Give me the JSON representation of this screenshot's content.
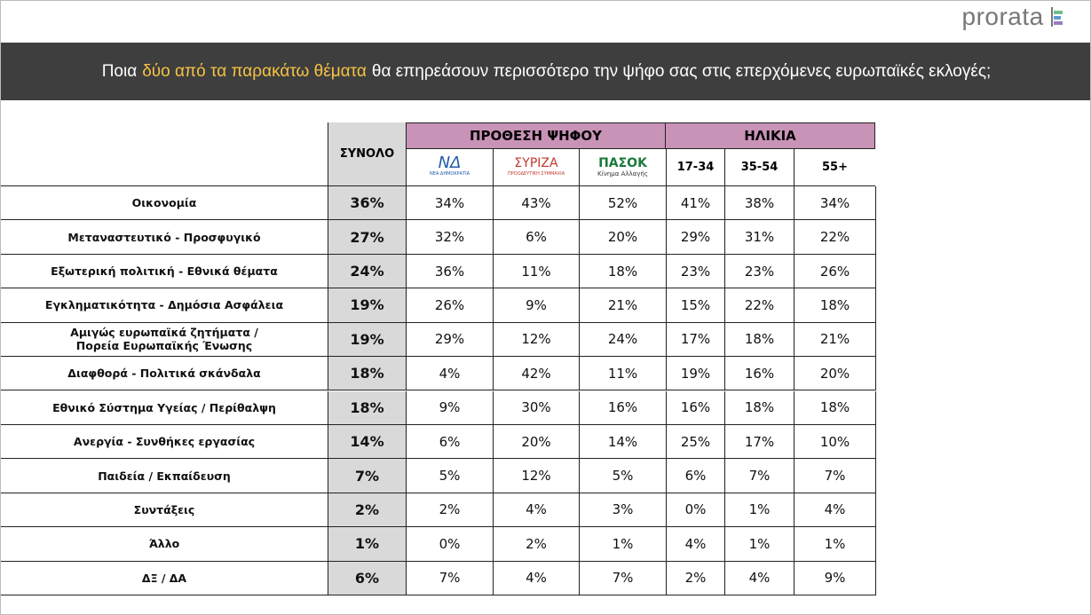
{
  "brand": "prorata",
  "header": {
    "title_prefix": "Ποια",
    "title_highlight": "δύο από τα παρακάτω θέματα",
    "title_suffix": "θα επηρεάσουν περισσότερο την ψήφο σας στις επερχόμενες ευρωπαϊκές εκλογές;"
  },
  "table": {
    "total_header": "ΣΥΝΟΛΟ",
    "groups": [
      "ΠΡΟΘΕΣΗ ΨΗΦΟΥ",
      "ΗΛΙΚΙΑ"
    ],
    "parties": [
      {
        "name": "ΝΔ",
        "subtitle": "ΝΕΑ ΔΗΜΟΚΡΑΤΙΑ"
      },
      {
        "name": "ΣΥΡΙΖΑ",
        "subtitle": "ΠΡΟΟΔΕΥΤΙΚΗ ΣΥΜΜΑΧΙΑ"
      },
      {
        "name": "ΠΑΣΟΚ",
        "subtitle": "Κίνημα Αλλαγής"
      }
    ],
    "ages": [
      "17-34",
      "35-54",
      "55+"
    ],
    "rows": [
      {
        "label": [
          "Οικονομία"
        ],
        "values": [
          "36%",
          "34%",
          "43%",
          "52%",
          "41%",
          "38%",
          "34%"
        ]
      },
      {
        "label": [
          "Μεταναστευτικό - Προσφυγικό"
        ],
        "values": [
          "27%",
          "32%",
          "6%",
          "20%",
          "29%",
          "31%",
          "22%"
        ]
      },
      {
        "label": [
          "Εξωτερική πολιτική - Εθνικά θέματα"
        ],
        "values": [
          "24%",
          "36%",
          "11%",
          "18%",
          "23%",
          "23%",
          "26%"
        ]
      },
      {
        "label": [
          "Εγκληματικότητα - Δημόσια Ασφάλεια"
        ],
        "values": [
          "19%",
          "26%",
          "9%",
          "21%",
          "15%",
          "22%",
          "18%"
        ]
      },
      {
        "label": [
          "Αμιγώς ευρωπαϊκά ζητήματα /",
          "Πορεία Ευρωπαϊκής Ένωσης"
        ],
        "values": [
          "19%",
          "29%",
          "12%",
          "24%",
          "17%",
          "18%",
          "21%"
        ]
      },
      {
        "label": [
          "Διαφθορά - Πολιτικά σκάνδαλα"
        ],
        "values": [
          "18%",
          "4%",
          "42%",
          "11%",
          "19%",
          "16%",
          "20%"
        ]
      },
      {
        "label": [
          "Εθνικό Σύστημα Υγείας / Περίθαλψη"
        ],
        "values": [
          "18%",
          "9%",
          "30%",
          "16%",
          "16%",
          "18%",
          "18%"
        ]
      },
      {
        "label": [
          "Ανεργία - Συνθήκες εργασίας"
        ],
        "values": [
          "14%",
          "6%",
          "20%",
          "14%",
          "25%",
          "17%",
          "10%"
        ]
      },
      {
        "label": [
          "Παιδεία / Εκπαίδευση"
        ],
        "values": [
          "7%",
          "5%",
          "12%",
          "5%",
          "6%",
          "7%",
          "7%"
        ]
      },
      {
        "label": [
          "Συντάξεις"
        ],
        "values": [
          "2%",
          "2%",
          "4%",
          "3%",
          "0%",
          "1%",
          "4%"
        ]
      },
      {
        "label": [
          "Άλλο"
        ],
        "values": [
          "1%",
          "0%",
          "2%",
          "1%",
          "4%",
          "1%",
          "1%"
        ]
      },
      {
        "label": [
          "ΔΞ / ΔΑ"
        ],
        "values": [
          "6%",
          "7%",
          "4%",
          "7%",
          "2%",
          "4%",
          "9%"
        ]
      }
    ]
  }
}
